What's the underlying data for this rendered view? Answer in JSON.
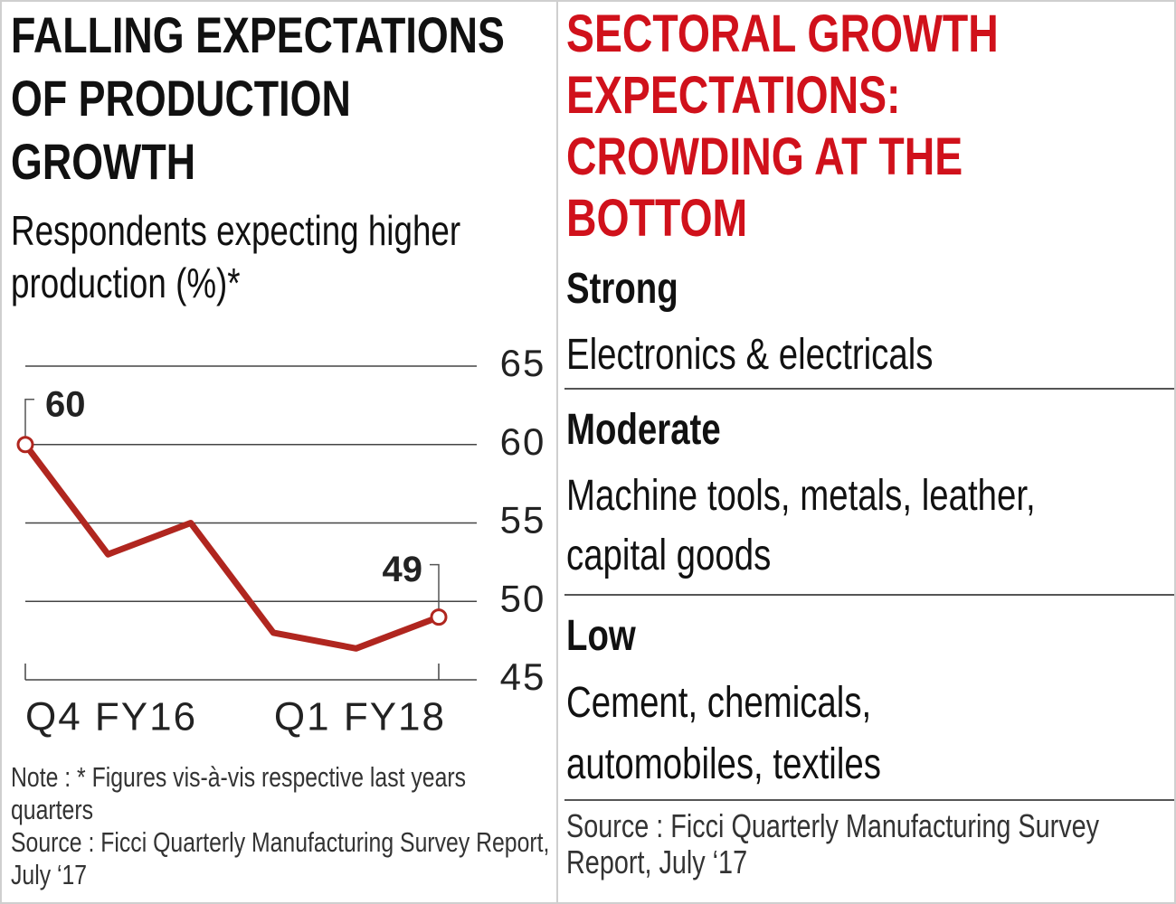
{
  "chart_data": {
    "type": "line",
    "title": "FALLING EXPECTATIONS OF PRODUCTION GROWTH",
    "subtitle": "Respondents expecting higher production (%)*",
    "categories": [
      "Q4 FY16",
      null,
      null,
      null,
      null,
      "Q1 FY18"
    ],
    "series": [
      {
        "name": "Respondents expecting higher production",
        "color": "#b0261f",
        "values": [
          60,
          53,
          55,
          48,
          47,
          49
        ],
        "value_labels": [
          "60",
          null,
          null,
          null,
          null,
          "49"
        ]
      }
    ],
    "ylim": [
      45,
      65
    ],
    "yticks": [
      45,
      50,
      55,
      60,
      65
    ],
    "grid": true,
    "note": "Note : * Figures vis-à-vis respective last years quarters",
    "source": "Source : Ficci Quarterly Manufacturing Survey Report, July ‘17"
  },
  "sectoral": {
    "title": "SECTORAL GROWTH EXPECTATIONS: CROWDING AT THE BOTTOM",
    "groups": [
      {
        "heading": "Strong",
        "sectors": "Electronics & electricals"
      },
      {
        "heading": "Moderate",
        "sectors": "Machine tools, metals, leather, capital goods"
      },
      {
        "heading": "Low",
        "sectors": "Cement, chemicals, automobiles, textiles"
      }
    ],
    "source": "Source : Ficci Quarterly Manufacturing Survey Report, July ‘17"
  }
}
